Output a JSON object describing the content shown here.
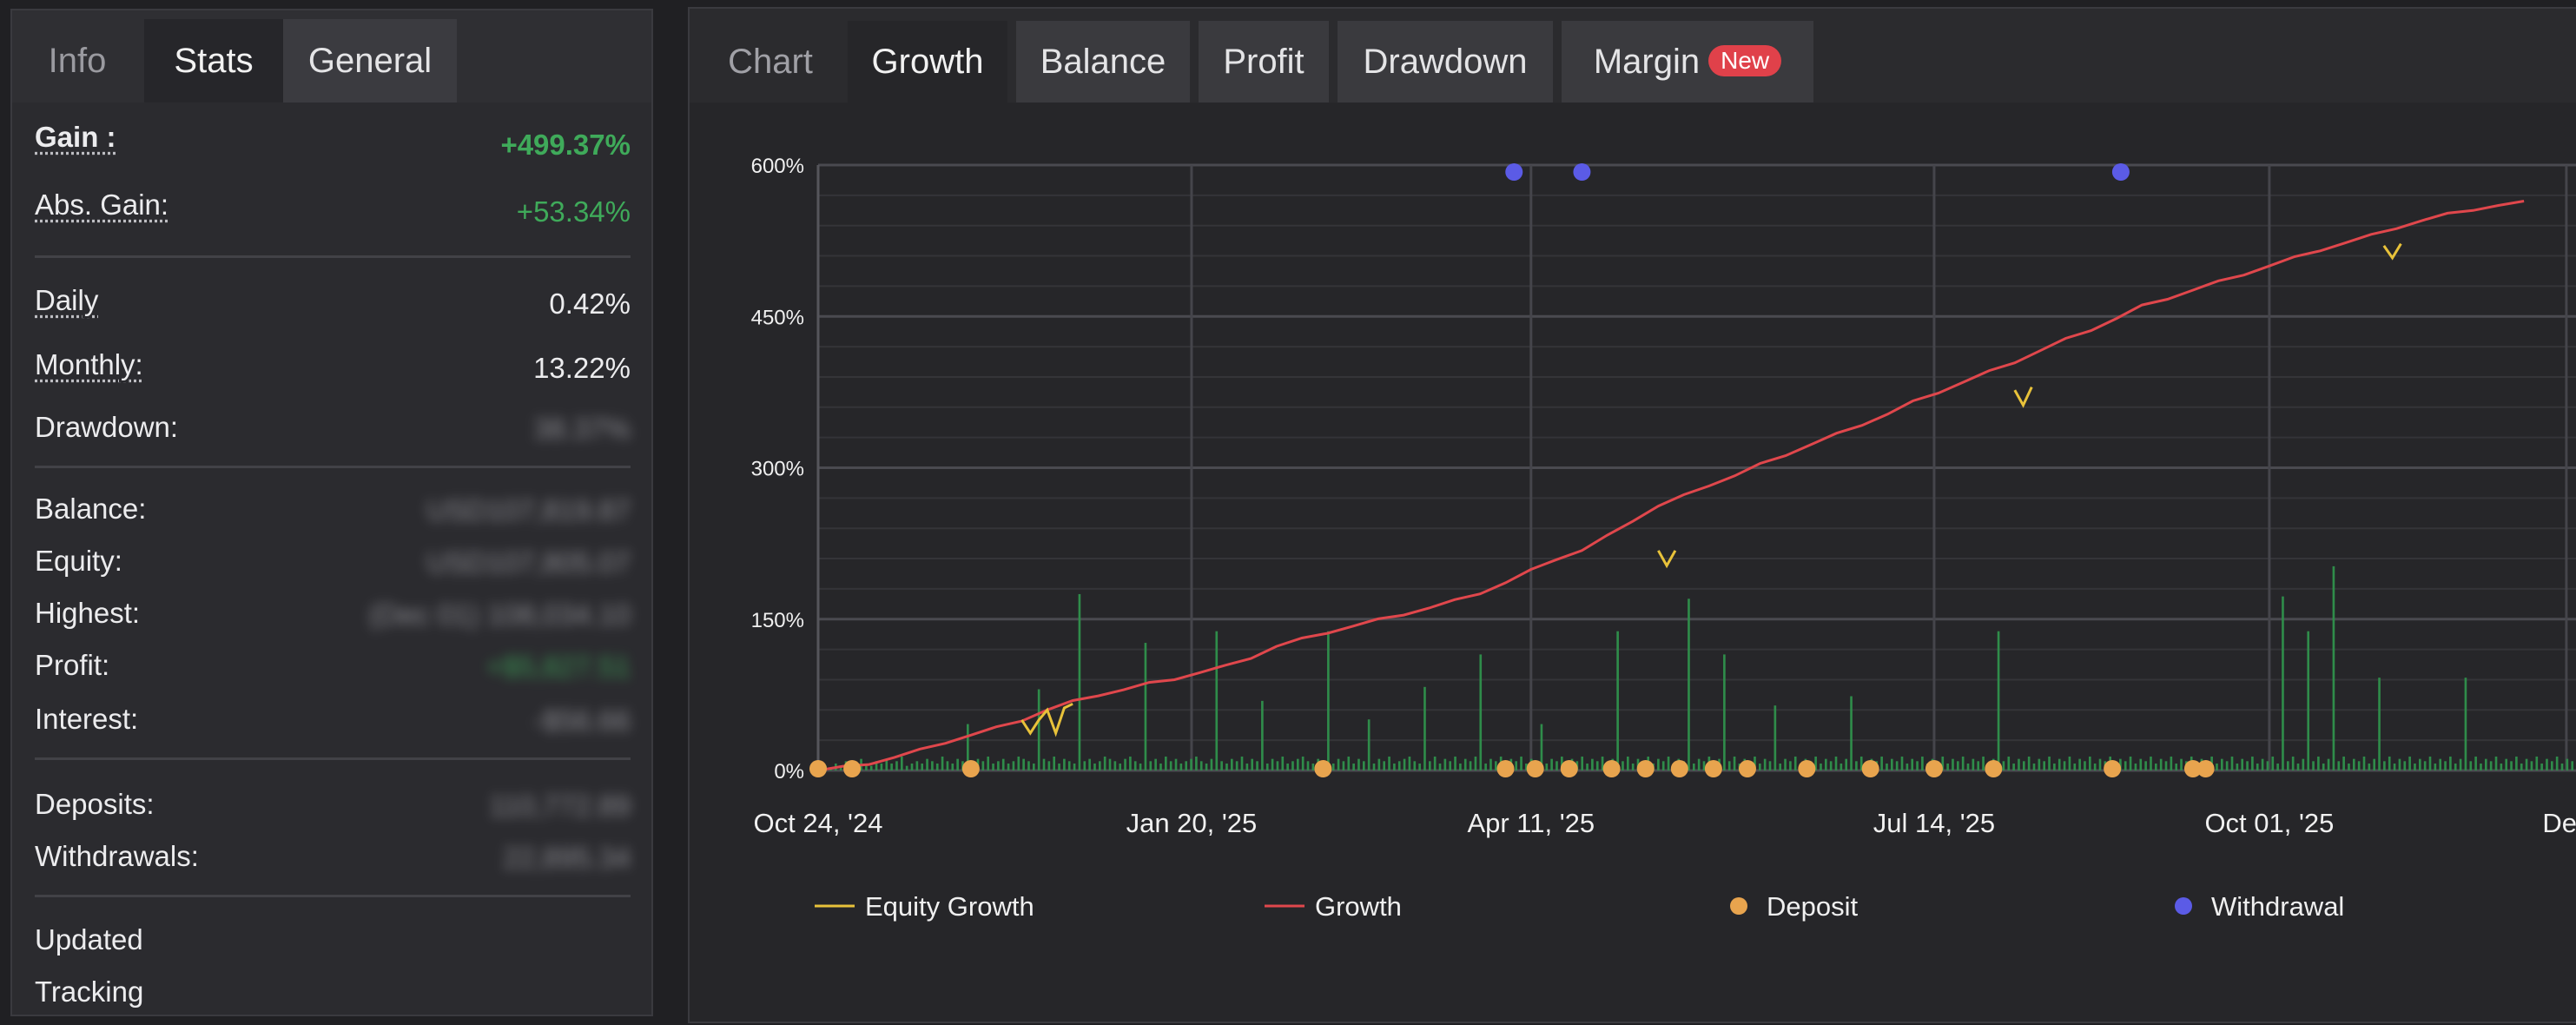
{
  "left_panel": {
    "tabs": [
      {
        "label": "Info"
      },
      {
        "label": "Stats"
      },
      {
        "label": "General"
      }
    ],
    "stats": {
      "gain": {
        "label": "Gain :",
        "value": "+499.37%"
      },
      "abs_gain": {
        "label": "Abs. Gain:",
        "value": "+53.34%"
      },
      "daily": {
        "label": "Daily",
        "value": "0.42%"
      },
      "monthly": {
        "label": "Monthly:",
        "value": "13.22%"
      },
      "drawdown": {
        "label": "Drawdown:",
        "value": "38.37%"
      },
      "balance": {
        "label": "Balance:",
        "value": "USD107,819.87"
      },
      "equity": {
        "label": "Equity:",
        "value": "USD107,805.07"
      },
      "highest": {
        "label": "Highest:",
        "value": "(Dec 01) 108,034.10"
      },
      "profit": {
        "label": "Profit:",
        "value": "+$5,827.51"
      },
      "interest": {
        "label": "Interest:",
        "value": "-$56.66"
      },
      "deposits": {
        "label": "Deposits:",
        "value": "110,772.89"
      },
      "withdrawals": {
        "label": "Withdrawals:",
        "value": "22,895.34"
      },
      "updated": {
        "label": "Updated"
      },
      "tracking": {
        "label": "Tracking"
      }
    }
  },
  "chart_panel": {
    "tabs": [
      {
        "label": "Chart"
      },
      {
        "label": "Growth"
      },
      {
        "label": "Balance"
      },
      {
        "label": "Profit"
      },
      {
        "label": "Drawdown"
      },
      {
        "label": "Margin",
        "badge": "New"
      }
    ]
  },
  "colors": {
    "growth": "#e0474c",
    "equity_growth": "#e8c23a",
    "deposit": "#e8a44e",
    "withdrawal": "#5b5be6",
    "daily_bars": "#2f8c4a",
    "positive": "#3faa5a"
  },
  "chart_data": {
    "type": "line",
    "title": "",
    "xlabel": "",
    "ylabel": "",
    "x_ticks": [
      "Oct 24, '24",
      "Jan 20, '25",
      "Apr 11, '25",
      "Jul 14, '25",
      "Oct 01, '25",
      "Dec"
    ],
    "y_ticks": [
      "0%",
      "150%",
      "300%",
      "450%",
      "600%"
    ],
    "ylim": [
      0,
      600
    ],
    "grid": true,
    "legend_position": "bottom",
    "legend": [
      "Equity Growth",
      "Growth",
      "Deposit",
      "Withdrawal"
    ],
    "series": [
      {
        "name": "Growth",
        "type": "line",
        "x": [
          0,
          6,
          12,
          18,
          24,
          30,
          36,
          42,
          48,
          54,
          60,
          66,
          72,
          78,
          84,
          90,
          96,
          102,
          108,
          114,
          120,
          126,
          132,
          138,
          144,
          150,
          156,
          162,
          168,
          174,
          180,
          186,
          192,
          198,
          204,
          210,
          216,
          222,
          228,
          234,
          240,
          246,
          252,
          258,
          264,
          270,
          276,
          282,
          288,
          294,
          300,
          306,
          312,
          318,
          324,
          330,
          336,
          342,
          348,
          354,
          360,
          366,
          372,
          378,
          384,
          390,
          396,
          402
        ],
        "values": [
          0,
          3,
          7,
          13,
          20,
          28,
          35,
          42,
          50,
          60,
          68,
          75,
          80,
          86,
          91,
          97,
          103,
          112,
          123,
          130,
          137,
          143,
          149,
          155,
          161,
          168,
          176,
          186,
          198,
          210,
          218,
          232,
          248,
          262,
          272,
          283,
          292,
          303,
          313,
          323,
          333,
          343,
          353,
          365,
          375,
          385,
          395,
          405,
          416,
          427,
          437,
          448,
          460,
          468,
          476,
          484,
          492,
          500,
          508,
          516,
          523,
          530,
          538,
          545,
          551,
          556,
          560,
          563
        ]
      },
      {
        "name": "Equity Growth",
        "type": "line",
        "note_points": [
          [
            48,
            50
          ],
          [
            50,
            37
          ],
          [
            52,
            50
          ],
          [
            54,
            60
          ],
          [
            56,
            37
          ],
          [
            58,
            62
          ],
          [
            60,
            66
          ],
          [
            198,
            218
          ],
          [
            200,
            203
          ],
          [
            202,
            218
          ],
          [
            282,
            377
          ],
          [
            284,
            362
          ],
          [
            286,
            380
          ],
          [
            369,
            520
          ],
          [
            371,
            508
          ],
          [
            373,
            522
          ]
        ]
      },
      {
        "name": "Deposit",
        "type": "scatter",
        "x": [
          0,
          8,
          36,
          119,
          162,
          169,
          177,
          187,
          195,
          203,
          211,
          219,
          233,
          248,
          263,
          277,
          305,
          324,
          327
        ],
        "values": [
          0,
          0,
          0,
          0,
          0,
          0,
          0,
          0,
          0,
          0,
          0,
          0,
          0,
          0,
          0,
          0,
          0,
          0,
          0
        ]
      },
      {
        "name": "Withdrawal",
        "type": "scatter",
        "x": [
          164,
          180,
          307
        ],
        "values": [
          600,
          600,
          600
        ]
      },
      {
        "name": "Daily",
        "type": "bar",
        "values": [
          1,
          2,
          1,
          3,
          2,
          4,
          2,
          3,
          5,
          3,
          2,
          4,
          3,
          5,
          3,
          4,
          6,
          2,
          3,
          4,
          3,
          5,
          4,
          3,
          6,
          4,
          3,
          5,
          4,
          20,
          3,
          5,
          4,
          6,
          3,
          4,
          5,
          3,
          4,
          6,
          5,
          4,
          3,
          35,
          5,
          4,
          6,
          3,
          5,
          4,
          3,
          76,
          4,
          5,
          3,
          4,
          6,
          5,
          4,
          3,
          5,
          6,
          4,
          3,
          55,
          4,
          5,
          3,
          6,
          4,
          5,
          3,
          4,
          5,
          6,
          4,
          3,
          5,
          60,
          4,
          3,
          5,
          4,
          6,
          3,
          5,
          4,
          30,
          3,
          5,
          4,
          6,
          3,
          4,
          5,
          6,
          4,
          3,
          5,
          4,
          60,
          3,
          5,
          4,
          6,
          3,
          5,
          4,
          22,
          3,
          5,
          4,
          6,
          3,
          4,
          5,
          6,
          4,
          3,
          36,
          4,
          6,
          3,
          5,
          4,
          6,
          3,
          5,
          4,
          6,
          50,
          3,
          5,
          4,
          6,
          3,
          5,
          4,
          6,
          3,
          5,
          4,
          20,
          3,
          5,
          4,
          6,
          3,
          5,
          4,
          6,
          3,
          5,
          4,
          6,
          3,
          5,
          60,
          4,
          6,
          3,
          5,
          4,
          6,
          3,
          5,
          4,
          6,
          3,
          5,
          4,
          74,
          3,
          5,
          4,
          6,
          3,
          5,
          50,
          4,
          6,
          3,
          5,
          4,
          6,
          3,
          5,
          4,
          28,
          3,
          5,
          4,
          6,
          3,
          5,
          4,
          6,
          3,
          5,
          4,
          6,
          3,
          5,
          32,
          4,
          6,
          3,
          5,
          4,
          6,
          3,
          5,
          4,
          6,
          3,
          5,
          4,
          6,
          3,
          5,
          4,
          6,
          3,
          5,
          4,
          6,
          3,
          5,
          4,
          6,
          3,
          5,
          60,
          4,
          6,
          3,
          5,
          4,
          6,
          3,
          5,
          4,
          6,
          3,
          5,
          4,
          6,
          3,
          5,
          4,
          6,
          3,
          5,
          4,
          6,
          3,
          5,
          4,
          6,
          3,
          5,
          4,
          6,
          3,
          5,
          4,
          6,
          3,
          5,
          4,
          6,
          3,
          5,
          4,
          6,
          3,
          5,
          4,
          6,
          3,
          5,
          4,
          6,
          3,
          5,
          4,
          6,
          3,
          75,
          4,
          6,
          3,
          5,
          60,
          4,
          6,
          3,
          5,
          88,
          4,
          6,
          3,
          5,
          4,
          6,
          3,
          5,
          40,
          4,
          6,
          3,
          5,
          4,
          6,
          3,
          5,
          4,
          6,
          3,
          5,
          4,
          6,
          3,
          5,
          40,
          4,
          6,
          3,
          5,
          4,
          6,
          3,
          5,
          4,
          6,
          3,
          5,
          4,
          6,
          3,
          5,
          4,
          6,
          3,
          5,
          4,
          6,
          3,
          5,
          4,
          6
        ]
      }
    ]
  }
}
